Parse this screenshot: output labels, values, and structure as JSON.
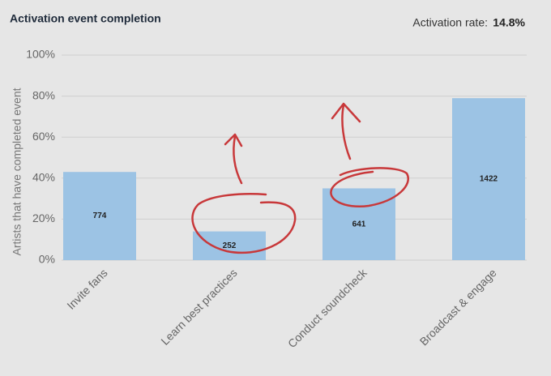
{
  "chart_data": {
    "type": "bar",
    "title": "Activation event completion",
    "annotation_label": "Activation rate:",
    "annotation_value": "14.8%",
    "ylabel": "Artists that have completed event",
    "categories": [
      "Invite fans",
      "Learn best practices",
      "Conduct soundcheck",
      "Broadcast & engage"
    ],
    "values": [
      43,
      14,
      35,
      79
    ],
    "counts": [
      774,
      252,
      641,
      1422
    ],
    "color": "#9cc3e4",
    "ylim": [
      0,
      100
    ],
    "yticks": [
      {
        "value": 0,
        "label": "0%"
      },
      {
        "value": 20,
        "label": "20%"
      },
      {
        "value": 40,
        "label": "40%"
      },
      {
        "value": 60,
        "label": "60%"
      },
      {
        "value": 80,
        "label": "80%"
      },
      {
        "value": 100,
        "label": "100%"
      }
    ],
    "grid": true
  }
}
